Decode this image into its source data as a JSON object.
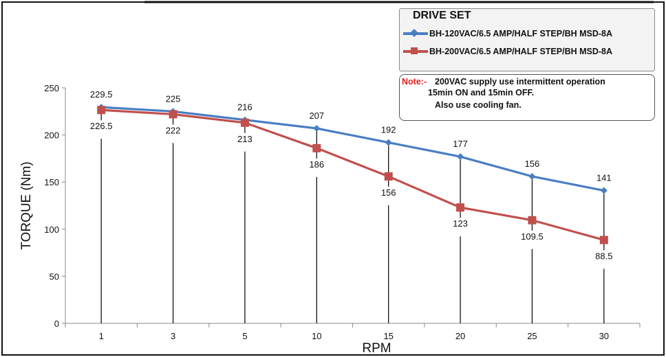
{
  "chart_data": {
    "type": "line",
    "categories": [
      "1",
      "3",
      "5",
      "10",
      "15",
      "20",
      "25",
      "30"
    ],
    "series": [
      {
        "name": "BH-120VAC/6.5 AMP/HALF STEP/BH MSD-8A",
        "values": [
          229.5,
          225,
          216,
          207,
          192,
          177,
          156,
          141
        ],
        "labels": [
          "229.5",
          "225",
          "216",
          "207",
          "192",
          "177",
          "156",
          "141"
        ],
        "color": "#4a7ec2",
        "marker": "diamond"
      },
      {
        "name": "BH-200VAC/6.5 AMP/HALF STEP/BH MSD-8A",
        "values": [
          226.5,
          222,
          213,
          186,
          156,
          123,
          109.5,
          88.5
        ],
        "labels": [
          "226.5",
          "222",
          "213",
          "186",
          "156",
          "123",
          "109.5",
          "88.5"
        ],
        "color": "#c0504d",
        "marker": "square"
      }
    ],
    "xlabel": "RPM",
    "ylabel": "TORQUE (Nm)",
    "ylim": [
      0,
      250
    ],
    "yticks": [
      "0",
      "50",
      "100",
      "150",
      "200",
      "250"
    ],
    "legend_title": "DRIVE SET",
    "legend_position": "top-right",
    "grid": false
  },
  "note": {
    "label": "Note:-",
    "line1": "200VAC supply use intermittent operation",
    "line2": "15min ON and 15min OFF.",
    "line3": "Also use cooling fan."
  }
}
